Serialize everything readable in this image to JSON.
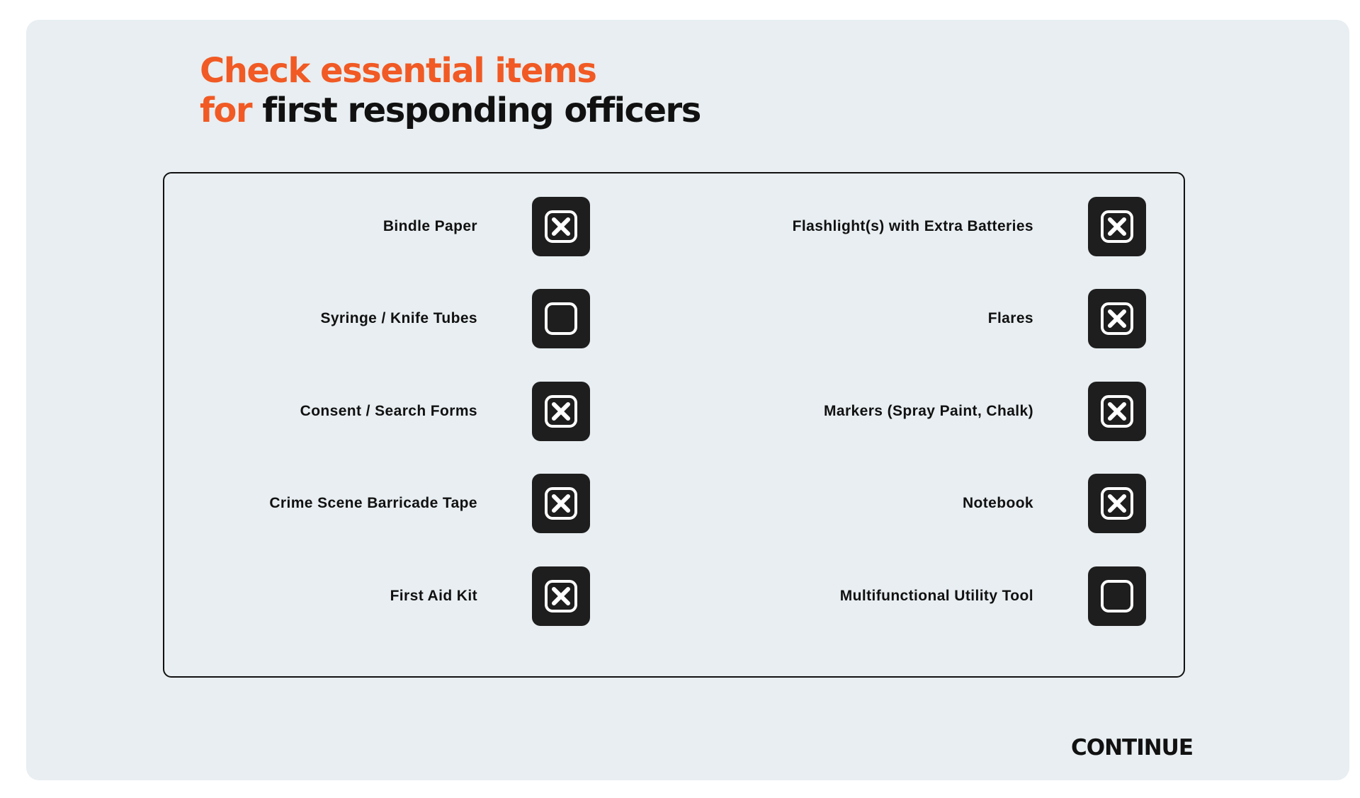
{
  "heading": {
    "line1": "Check essential items",
    "line2_prefix": "for",
    "line2_rest": "first responding officers"
  },
  "colors": {
    "accent": "#f15a24",
    "background": "#e8eef1",
    "text": "#111111",
    "checkbox": "#1f1e1e"
  },
  "checklist": {
    "left": [
      {
        "label": "Bindle Paper",
        "checked": true
      },
      {
        "label": "Syringe / Knife Tubes",
        "checked": false
      },
      {
        "label": "Consent / Search Forms",
        "checked": true
      },
      {
        "label": "Crime Scene Barricade Tape",
        "checked": true
      },
      {
        "label": "First Aid Kit",
        "checked": true
      }
    ],
    "right": [
      {
        "label": "Flashlight(s) with Extra Batteries",
        "checked": true
      },
      {
        "label": "Flares",
        "checked": true
      },
      {
        "label": "Markers (Spray Paint, Chalk)",
        "checked": true
      },
      {
        "label": "Notebook",
        "checked": true
      },
      {
        "label": "Multifunctional Utility Tool",
        "checked": false
      }
    ],
    "check_icon": "x-mark-icon"
  },
  "continue_label": "CONTINUE"
}
